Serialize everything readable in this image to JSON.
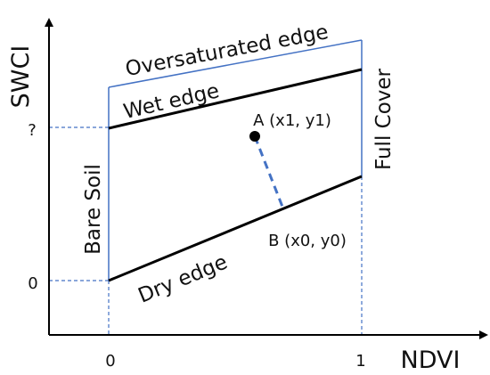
{
  "diagram": {
    "axes": {
      "x_title": "NDVI",
      "y_title": "SWCI",
      "x_ticks": [
        "0",
        "1"
      ],
      "y_ticks": [
        "0",
        "?"
      ]
    },
    "edges": {
      "oversaturated": "Oversaturated edge",
      "wet": "Wet edge",
      "dry": "Dry edge",
      "bare_soil": "Bare Soil",
      "full_cover": "Full Cover"
    },
    "points": {
      "a": "A (x1, y1)",
      "b": "B (x0, y0)"
    },
    "colors": {
      "trapezoid_outline": "#4472c4",
      "edges": "#000000",
      "guides": "#4472c4",
      "connector": "#4472c4"
    }
  }
}
